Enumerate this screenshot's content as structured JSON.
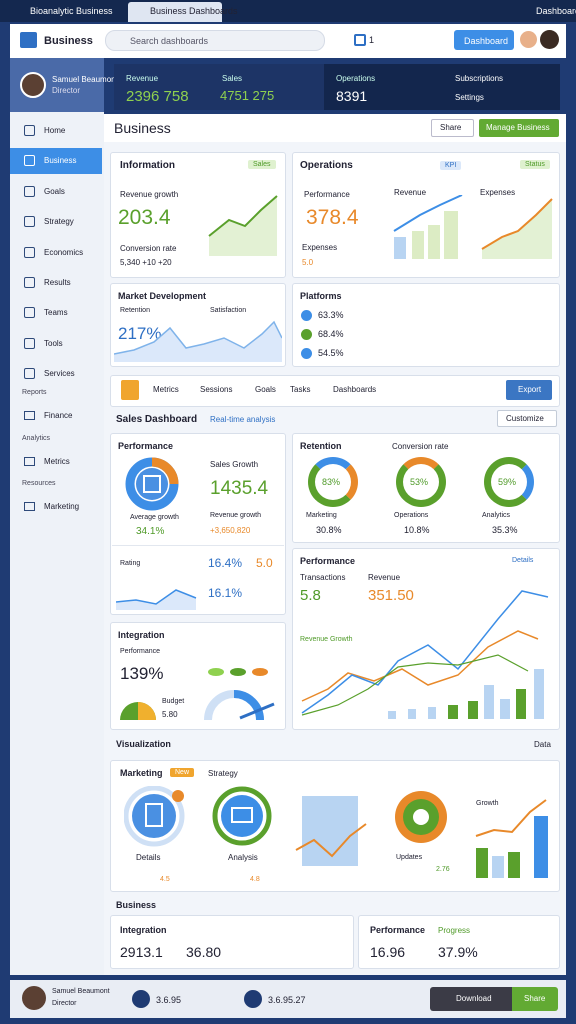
{
  "browser": {
    "tab1": "Bioanalytic Business",
    "tab2": "Business Dashboards",
    "right": "Dashboards"
  },
  "header": {
    "logo": "Business",
    "search": "Search dashboards",
    "badge": "1",
    "button": "Dashboard"
  },
  "profile": {
    "name": "Samuel Beaumont",
    "role": "Director"
  },
  "topstats": [
    {
      "label": "Revenue",
      "value": "2396 758"
    },
    {
      "label": "Sales",
      "value": "4751 275"
    },
    {
      "label": "Operations",
      "value": "8391"
    }
  ],
  "topright": [
    "Subscriptions",
    "Settings"
  ],
  "sidebar": {
    "items": [
      "Home",
      "Business",
      "Goals",
      "Strategy",
      "Economics",
      "Results",
      "Teams",
      "Tools",
      "Services"
    ],
    "groups": [
      {
        "title": "Reports",
        "item": "Finance"
      },
      {
        "title": "Analytics",
        "item": "Metrics"
      },
      {
        "title": "Resources",
        "item": "Marketing"
      }
    ]
  },
  "page": {
    "title": "Business",
    "share": "Share",
    "manage": "Manage Business"
  },
  "info": {
    "title": "Information",
    "badge": "Sales",
    "label": "Revenue growth",
    "value": "203.4",
    "sub": "Conversion rate",
    "foot": "5,340 +10 +20"
  },
  "ops": {
    "title": "Operations",
    "kpi": "KPI",
    "status": "Status",
    "label": "Performance",
    "value": "378.4",
    "sub": "Expenses",
    "rating": "5.0",
    "c1": "Revenue",
    "c2": "Expenses"
  },
  "market": {
    "title": "Market Development",
    "sub": "Retention",
    "value": "217%",
    "sub2": "Satisfaction"
  },
  "platforms": {
    "title": "Platforms",
    "items": [
      "63.3%",
      "68.4%",
      "54.5%"
    ]
  },
  "toolbar": {
    "tabs": [
      "Metrics",
      "Sessions",
      "Goals",
      "Tasks",
      "Dashboards"
    ],
    "button": "Export"
  },
  "sales": {
    "title": "Sales Dashboard",
    "tag": "Real-time analysis",
    "button": "Customize"
  },
  "perf": {
    "title": "Performance",
    "donut": "Average growth",
    "donut_value": "34.1%",
    "label": "Sales Growth",
    "value": "1435.4",
    "sub": "Revenue growth",
    "sub_value": "+3,650,820",
    "rating": "Rating",
    "r1": "16.4%",
    "r2": "5.0",
    "r3": "16.1%"
  },
  "retention": {
    "title": "Retention",
    "sub": "Conversion rate",
    "donuts": [
      {
        "pct": "83%",
        "label": "Marketing",
        "value": "30.8%"
      },
      {
        "pct": "53%",
        "label": "Operations",
        "value": "10.8%"
      },
      {
        "pct": "59%",
        "label": "Analytics",
        "value": "35.3%"
      }
    ]
  },
  "integration": {
    "title": "Integration",
    "sub": "Performance",
    "value": "139%",
    "label": "Budget",
    "label_value": "5.80"
  },
  "big": {
    "title": "Performance",
    "t1": "Transactions",
    "t2": "Revenue",
    "v1": "5.8",
    "v2": "351.50",
    "legend": "Revenue Growth",
    "right": "Details"
  },
  "viz": {
    "title": "Visualization",
    "right": "Data",
    "p1": "Marketing",
    "new": "New",
    "p2": "Strategy",
    "d1": "Details",
    "d1r": "4.5",
    "d2": "Analysis",
    "d2r": "4.8",
    "d3": "Updates",
    "d3r": "2.76",
    "d4": "Growth"
  },
  "biz": {
    "title": "Business",
    "c1": "Integration",
    "c1a": "2913.1",
    "c1b": "36.80",
    "c2": "Performance",
    "c2a": "16.96",
    "c2b": "37.9%",
    "c2tag": "Progress"
  },
  "footer": {
    "name": "Samuel Beaumont",
    "role": "Director",
    "s1": "3.6.95",
    "s2": "3.6.95.27",
    "download": "Download",
    "share": "Share"
  }
}
